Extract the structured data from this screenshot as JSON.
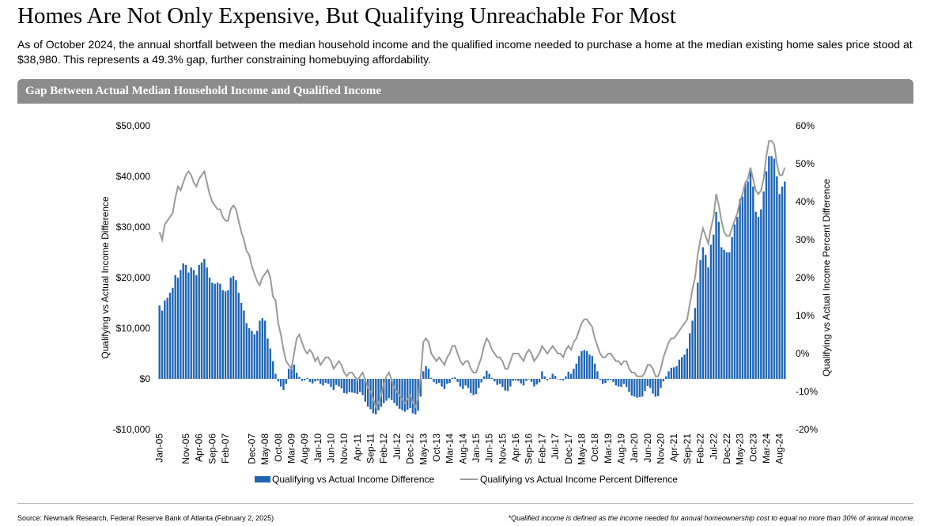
{
  "chart_data": {
    "type": "bar",
    "title": "Homes Are Not Only Expensive, But Qualifying Unreachable For Most",
    "subtitle": "As of October 2024, the annual shortfall between the median household income and the qualified income needed to purchase a home at the median existing home sales price stood at $38,980. This represents a 49.3% gap, further constraining homebuying affordability.",
    "panel_title": "Gap Between Actual Median Household Income and Qualified Income",
    "y_label": "Qualifying vs Actual Income Difference",
    "y2_label": "Qualifying vs Actual Income Percent Difference",
    "source": "Source: Newmark Research, Federal Reserve Bank of Atlanta (February 2, 2025)",
    "note": "*Qualified income is defined as the income needed for annual homeownership cost to equal no more than 30% of annual income.",
    "ylim": [
      -10000,
      50000
    ],
    "yticks": [
      {
        "value": -10000,
        "label": "-$10,000"
      },
      {
        "value": 0,
        "label": "$0"
      },
      {
        "value": 10000,
        "label": "$10,000"
      },
      {
        "value": 20000,
        "label": "$20,000"
      },
      {
        "value": 30000,
        "label": "$30,000"
      },
      {
        "value": 40000,
        "label": "$40,000"
      },
      {
        "value": 50000,
        "label": "$50,000"
      }
    ],
    "y2lim": [
      -20,
      60
    ],
    "y2ticks": [
      {
        "value": -20,
        "label": "-20%"
      },
      {
        "value": -10,
        "label": "-10%"
      },
      {
        "value": 0,
        "label": "0%"
      },
      {
        "value": 10,
        "label": "10%"
      },
      {
        "value": 20,
        "label": "20%"
      },
      {
        "value": 30,
        "label": "30%"
      },
      {
        "value": 40,
        "label": "40%"
      },
      {
        "value": 50,
        "label": "50%"
      },
      {
        "value": 60,
        "label": "60%"
      }
    ],
    "categories": [
      "Jan-05",
      null,
      null,
      null,
      null,
      null,
      null,
      null,
      null,
      null,
      "Nov-05",
      null,
      null,
      null,
      null,
      "Apr-06",
      null,
      null,
      null,
      null,
      "Sep-06",
      null,
      null,
      null,
      null,
      "Feb-07",
      null,
      null,
      null,
      null,
      null,
      null,
      null,
      null,
      null,
      "Dec-07",
      null,
      null,
      null,
      null,
      "May-08",
      null,
      null,
      null,
      null,
      "Oct-08",
      null,
      null,
      null,
      null,
      "Mar-09",
      null,
      null,
      null,
      null,
      "Aug-09",
      null,
      null,
      null,
      null,
      "Jan-10",
      null,
      null,
      null,
      null,
      "Jun-10",
      null,
      null,
      null,
      null,
      "Nov-10",
      null,
      null,
      null,
      null,
      "Apr-11",
      null,
      null,
      null,
      null,
      "Sep-11",
      null,
      null,
      null,
      null,
      "Feb-12",
      null,
      null,
      null,
      null,
      "Jul-12",
      null,
      null,
      null,
      null,
      "Dec-12",
      null,
      null,
      null,
      null,
      "May-13",
      null,
      null,
      null,
      null,
      "Oct-13",
      null,
      null,
      null,
      null,
      "Mar-14",
      null,
      null,
      null,
      null,
      "Aug-14",
      null,
      null,
      null,
      null,
      "Jan-15",
      null,
      null,
      null,
      null,
      "Jun-15",
      null,
      null,
      null,
      null,
      "Nov-15",
      null,
      null,
      null,
      null,
      "Apr-16",
      null,
      null,
      null,
      null,
      "Sep-16",
      null,
      null,
      null,
      null,
      "Feb-17",
      null,
      null,
      null,
      null,
      "Jul-17",
      null,
      null,
      null,
      null,
      "Dec-17",
      null,
      null,
      null,
      null,
      "May-18",
      null,
      null,
      null,
      null,
      "Oct-18",
      null,
      null,
      null,
      null,
      "Mar-19",
      null,
      null,
      null,
      null,
      "Aug-19",
      null,
      null,
      null,
      null,
      "Jan-20",
      null,
      null,
      null,
      null,
      "Jun-20",
      null,
      null,
      null,
      null,
      "Nov-20",
      null,
      null,
      null,
      null,
      "Apr-21",
      null,
      null,
      null,
      null,
      "Sep-21",
      null,
      null,
      null,
      null,
      "Feb-22",
      null,
      null,
      null,
      null,
      "Jul-22",
      null,
      null,
      null,
      null,
      "Dec-22",
      null,
      null,
      null,
      null,
      "May-23",
      null,
      null,
      null,
      null,
      "Oct-23",
      null,
      null,
      null,
      null,
      "Mar-24",
      null,
      null,
      null,
      null,
      "Aug-24",
      null,
      null
    ],
    "series": [
      {
        "name": "Qualifying vs Actual Income Difference",
        "type": "bar",
        "color": "#1f65b5",
        "values": [
          14500,
          13500,
          15500,
          16000,
          17000,
          18000,
          20500,
          20000,
          21500,
          22800,
          22500,
          21000,
          22000,
          21500,
          20500,
          22500,
          23000,
          23700,
          22000,
          20000,
          19000,
          18800,
          19000,
          18800,
          17500,
          17300,
          17500,
          20000,
          20300,
          19500,
          17000,
          15000,
          13500,
          11000,
          10000,
          9500,
          8800,
          9500,
          11500,
          12000,
          11500,
          8000,
          6000,
          3500,
          1000,
          -500,
          -1500,
          -2200,
          -1000,
          2000,
          2500,
          2800,
          1200,
          400,
          -400,
          -300,
          200,
          -600,
          -900,
          -500,
          -300,
          -1000,
          -1300,
          -800,
          -1000,
          -1600,
          -2200,
          -1200,
          -1500,
          -1900,
          -2800,
          -2900,
          -2600,
          -2700,
          -2800,
          -3000,
          -2600,
          -3200,
          -4500,
          -5500,
          -6000,
          -6800,
          -7000,
          -6200,
          -5500,
          -4800,
          -4300,
          -3800,
          -4200,
          -4800,
          -5300,
          -5900,
          -6200,
          -6500,
          -6100,
          -5800,
          -6800,
          -7000,
          -6300,
          -3500,
          1500,
          2500,
          2000,
          200,
          -600,
          -1000,
          -800,
          -1500,
          -2000,
          -1000,
          -800,
          200,
          300,
          -600,
          -1500,
          -2000,
          -1300,
          -1800,
          -2800,
          -3200,
          -3000,
          -1800,
          -700,
          500,
          1600,
          1000,
          200,
          -500,
          -1200,
          -1000,
          -1600,
          -2300,
          -2400,
          -1500,
          -400,
          -300,
          -400,
          -900,
          -1300,
          -400,
          -100,
          -600,
          -1500,
          -1100,
          -700,
          1500,
          500,
          -300,
          200,
          1000,
          600,
          0,
          -200,
          -300,
          500,
          1400,
          1000,
          2000,
          3000,
          4500,
          5500,
          5700,
          5500,
          4800,
          4500,
          3000,
          1500,
          -200,
          -1000,
          -800,
          -300,
          -200,
          -600,
          -1300,
          -1500,
          -1600,
          -1000,
          -1600,
          -2600,
          -3300,
          -3500,
          -3700,
          -3600,
          -3500,
          -2400,
          -1400,
          -1800,
          -2900,
          -3500,
          -3400,
          -1800,
          -500,
          500,
          1500,
          2200,
          2300,
          2500,
          3800,
          4300,
          4800,
          6000,
          9000,
          11500,
          14000,
          19000,
          23500,
          26000,
          24500,
          22000,
          26500,
          28500,
          33000,
          31000,
          26000,
          25500,
          25000,
          25000,
          28000,
          30500,
          32000,
          35500,
          36000,
          38500,
          39000,
          41500,
          38000,
          33000,
          32000,
          33500,
          37000,
          41000,
          44000,
          44000,
          43500,
          40000,
          36500,
          38000,
          38980
        ]
      },
      {
        "name": "Qualifying vs Actual Income Percent Difference",
        "type": "line",
        "axis": "y2",
        "color": "#9a9a9a",
        "values": [
          32,
          30,
          34,
          35,
          36,
          37,
          41,
          44,
          43,
          45,
          47,
          48,
          47,
          45,
          44,
          46,
          47,
          48,
          45,
          42,
          40,
          39,
          38,
          38,
          36,
          35,
          35,
          38,
          39,
          38,
          35,
          32,
          30,
          27,
          26,
          23,
          21,
          19,
          18,
          20,
          21,
          22,
          20,
          15,
          14,
          8,
          5,
          1,
          -2,
          -3,
          -4,
          0,
          4,
          5,
          3,
          1,
          0,
          1,
          0,
          -2,
          -1,
          -3,
          -2,
          -1,
          -1,
          -2,
          -4,
          -3,
          -2,
          -3,
          -5,
          -6,
          -5,
          -5,
          -6,
          -7,
          -6,
          -5,
          -7,
          -9,
          -10,
          -12,
          -14,
          -13,
          -11,
          -8,
          -6,
          -5,
          -7,
          -9,
          -10,
          -11,
          -12,
          -13,
          -12,
          -11,
          -13,
          -14,
          -12,
          -6,
          3,
          4,
          3,
          0,
          -1,
          -2,
          -1,
          -2,
          -3,
          -1,
          0,
          2,
          2,
          0,
          -2,
          -3,
          -2,
          -2,
          -4,
          -5,
          -5,
          -3,
          -1,
          2,
          4,
          3,
          1,
          0,
          -1,
          -1,
          -2,
          -4,
          -4,
          -2,
          0,
          0,
          0,
          -1,
          -2,
          0,
          1,
          0,
          -2,
          -1,
          0,
          2,
          1,
          0,
          1,
          2,
          1,
          0,
          0,
          -1,
          1,
          2,
          1,
          3,
          4,
          6,
          8,
          9,
          9,
          8,
          7,
          4,
          2,
          0,
          -1,
          -1,
          0,
          0,
          -1,
          -2,
          -2,
          -3,
          -2,
          -2,
          -4,
          -5,
          -5,
          -6,
          -6,
          -6,
          -5,
          -3,
          -3,
          -4,
          -6,
          -6,
          -4,
          -1,
          1,
          3,
          4,
          4,
          5,
          6,
          7,
          8,
          9,
          13,
          17,
          20,
          26,
          30,
          33,
          31,
          29,
          33,
          36,
          42,
          39,
          35,
          32,
          31,
          31,
          33,
          35,
          37,
          40,
          42,
          45,
          46,
          49,
          46,
          43,
          42,
          43,
          46,
          52,
          56,
          56,
          55,
          50,
          47,
          47,
          49
        ]
      }
    ]
  }
}
